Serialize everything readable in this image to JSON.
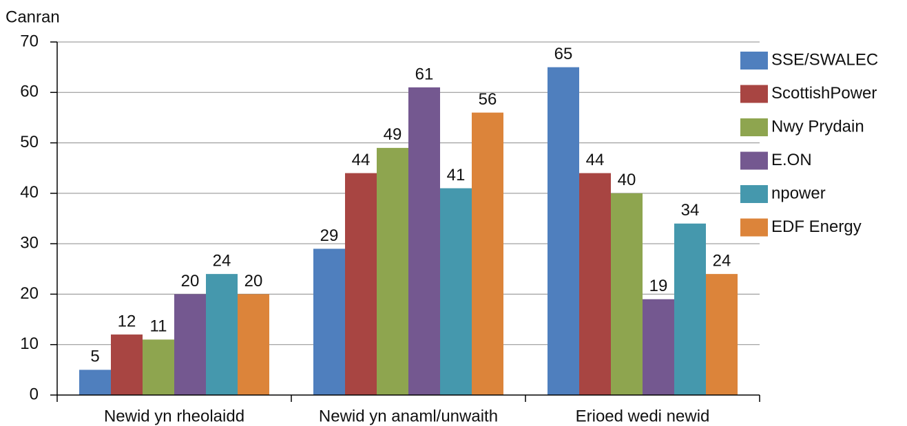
{
  "chart_data": {
    "type": "bar",
    "y_axis_label": "Canran",
    "categories": [
      "Newid yn rheolaidd",
      "Newid yn anaml/unwaith",
      "Erioed wedi newid"
    ],
    "series": [
      {
        "name": "SSE/SWALEC",
        "color": "#4f7fbe",
        "values": [
          5,
          29,
          65
        ]
      },
      {
        "name": "ScottishPower",
        "color": "#a84542",
        "values": [
          12,
          44,
          44
        ]
      },
      {
        "name": "Nwy Prydain",
        "color": "#8ea54f",
        "values": [
          11,
          49,
          40
        ]
      },
      {
        "name": "E.ON",
        "color": "#745890",
        "values": [
          20,
          61,
          19
        ]
      },
      {
        "name": "npower",
        "color": "#4598ad",
        "values": [
          24,
          41,
          34
        ]
      },
      {
        "name": "EDF Energy",
        "color": "#dc843a",
        "values": [
          20,
          56,
          24
        ]
      }
    ],
    "ylim": [
      0,
      70
    ],
    "yticks": [
      0,
      10,
      20,
      30,
      40,
      50,
      60,
      70
    ],
    "grid": true,
    "legend": "right"
  }
}
